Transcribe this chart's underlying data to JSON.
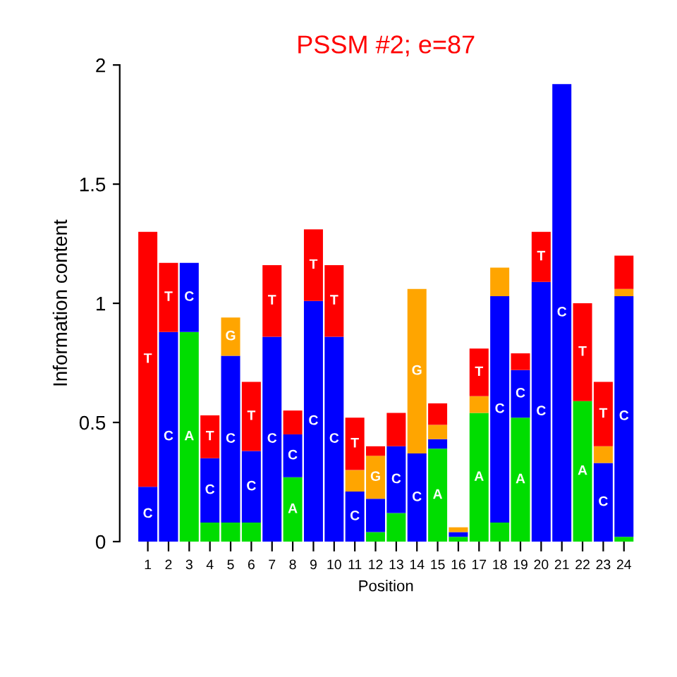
{
  "chart_data": {
    "type": "bar",
    "title": "PSSM #2; e=87",
    "xlabel": "Position",
    "ylabel": "Information content",
    "categories": [
      "1",
      "2",
      "3",
      "4",
      "5",
      "6",
      "7",
      "8",
      "9",
      "10",
      "11",
      "12",
      "13",
      "14",
      "15",
      "16",
      "17",
      "18",
      "19",
      "20",
      "21",
      "22",
      "23",
      "24"
    ],
    "stacked": true,
    "series": [
      {
        "name": "A",
        "color": "#00dd00",
        "values": [
          0,
          0,
          0.88,
          0.08,
          0.08,
          0.08,
          0,
          0.27,
          0,
          0,
          0,
          0.04,
          0.12,
          0,
          0.39,
          0.02,
          0.54,
          0.08,
          0.52,
          0,
          0,
          0.59,
          0,
          0.02
        ]
      },
      {
        "name": "C",
        "color": "#0000ff",
        "values": [
          0.23,
          0.88,
          0.29,
          0.27,
          0.7,
          0.3,
          0.86,
          0.18,
          1.01,
          0.86,
          0.21,
          0.14,
          0.28,
          0.37,
          0.04,
          0.02,
          0,
          0.95,
          0.2,
          1.09,
          1.92,
          0,
          0.33,
          1.01
        ]
      },
      {
        "name": "G",
        "color": "#ffa500",
        "values": [
          0,
          0,
          0,
          0,
          0.16,
          0,
          0,
          0,
          0,
          0,
          0.09,
          0.18,
          0,
          0.69,
          0.06,
          0.02,
          0.07,
          0.12,
          0,
          0,
          0,
          0,
          0.07,
          0.03
        ]
      },
      {
        "name": "T",
        "color": "#ff0000",
        "values": [
          1.07,
          0.29,
          0,
          0.18,
          0,
          0.29,
          0.3,
          0.1,
          0.3,
          0.3,
          0.22,
          0.04,
          0.14,
          0,
          0.09,
          0,
          0.2,
          0,
          0.07,
          0.21,
          0,
          0.41,
          0.27,
          0.14
        ]
      }
    ],
    "ylim": [
      0,
      2
    ],
    "yticks": [
      0,
      0.5,
      1,
      1.5,
      2
    ],
    "grid": false,
    "legend": false
  }
}
